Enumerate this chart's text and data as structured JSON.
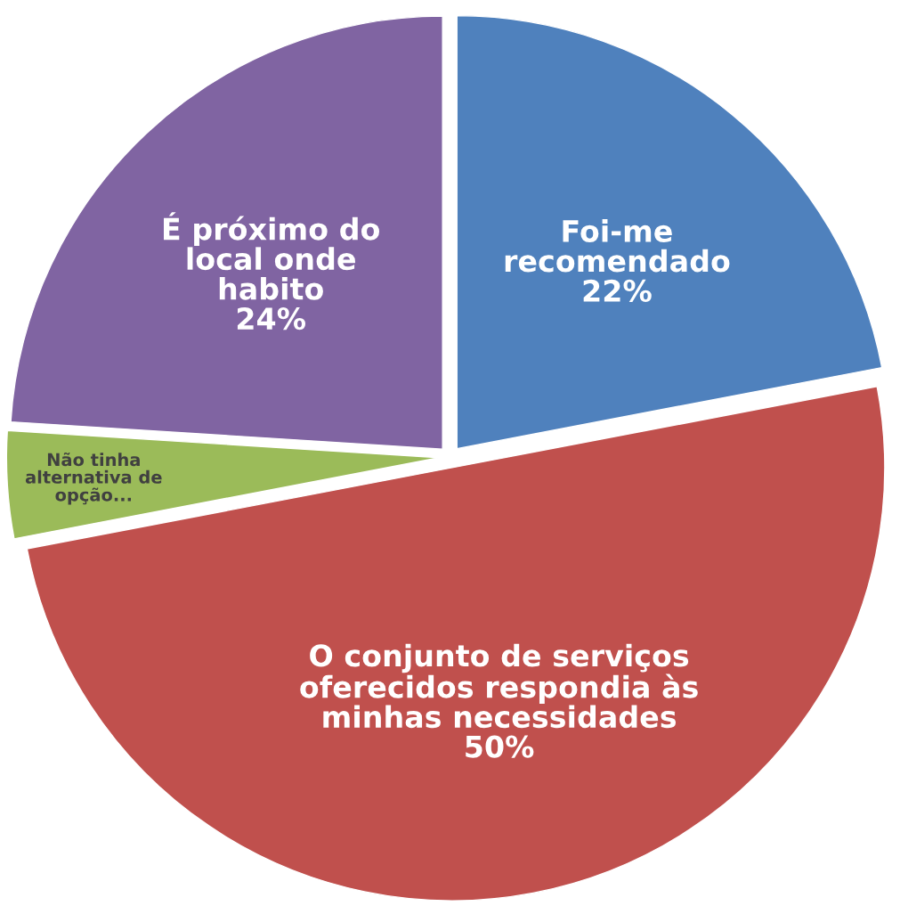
{
  "chart_data": {
    "type": "pie",
    "categories": [
      "Foi-me\nrecomendado",
      "O conjunto de serviços\noferecidos respondia às\nminhas necessidades",
      "Não tinha\nalternativa de\nopção...",
      "É próximo do\nlocal onde\nhabito"
    ],
    "values": [
      22,
      50,
      4,
      24
    ],
    "value_labels": [
      "22%",
      "50%",
      null,
      "24%"
    ],
    "colors": [
      "#4f81bd",
      "#c0504d",
      "#9bbb59",
      "#8064a2"
    ],
    "legend": false
  }
}
